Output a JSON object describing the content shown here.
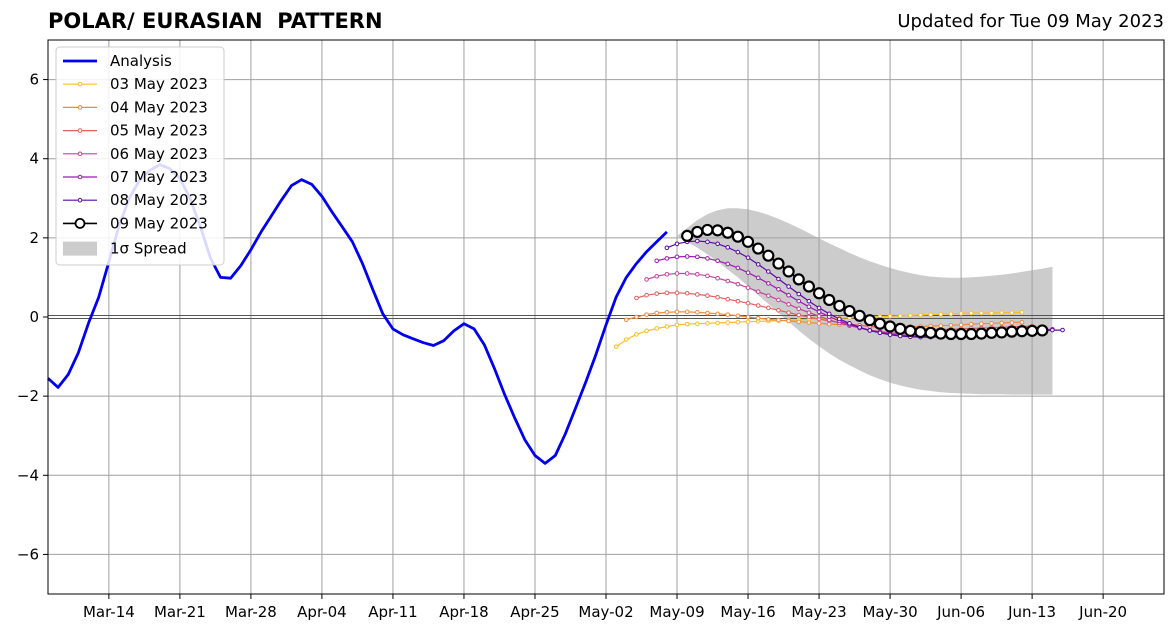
{
  "chart_data": {
    "type": "line",
    "title": "POLAR/ EURASIAN  PATTERN",
    "subtitle": "Updated for Tue 09 May 2023",
    "xlim": [
      "2023-03-08",
      "2023-06-26"
    ],
    "ylim": [
      -7,
      7
    ],
    "grid": true,
    "legend_position": "top-left",
    "x_ticks": [
      {
        "date": "2023-03-14",
        "label": "Mar-14"
      },
      {
        "date": "2023-03-21",
        "label": "Mar-21"
      },
      {
        "date": "2023-03-28",
        "label": "Mar-28"
      },
      {
        "date": "2023-04-04",
        "label": "Apr-04"
      },
      {
        "date": "2023-04-11",
        "label": "Apr-11"
      },
      {
        "date": "2023-04-18",
        "label": "Apr-18"
      },
      {
        "date": "2023-04-25",
        "label": "Apr-25"
      },
      {
        "date": "2023-05-02",
        "label": "May-02"
      },
      {
        "date": "2023-05-09",
        "label": "May-09"
      },
      {
        "date": "2023-05-16",
        "label": "May-16"
      },
      {
        "date": "2023-05-23",
        "label": "May-23"
      },
      {
        "date": "2023-05-30",
        "label": "May-30"
      },
      {
        "date": "2023-06-06",
        "label": "Jun-06"
      },
      {
        "date": "2023-06-13",
        "label": "Jun-13"
      },
      {
        "date": "2023-06-20",
        "label": "Jun-20"
      }
    ],
    "y_ticks": [
      {
        "value": -6,
        "label": "−6"
      },
      {
        "value": -4,
        "label": "−4"
      },
      {
        "value": -2,
        "label": "−2"
      },
      {
        "value": 0,
        "label": "0"
      },
      {
        "value": 2,
        "label": "2"
      },
      {
        "value": 4,
        "label": "4"
      },
      {
        "value": 6,
        "label": "6"
      }
    ],
    "analysis": {
      "name": "Analysis",
      "color": "#0000ee",
      "start_date": "2023-03-08",
      "values": [
        -1.55,
        -1.78,
        -1.45,
        -0.9,
        -0.15,
        0.5,
        1.4,
        2.3,
        3.0,
        3.45,
        3.7,
        3.85,
        3.75,
        3.5,
        3.0,
        2.3,
        1.5,
        1.0,
        0.98,
        1.3,
        1.7,
        2.15,
        2.55,
        2.95,
        3.32,
        3.47,
        3.35,
        3.05,
        2.65,
        2.28,
        1.9,
        1.35,
        0.7,
        0.08,
        -0.3,
        -0.45,
        -0.55,
        -0.65,
        -0.72,
        -0.6,
        -0.35,
        -0.17,
        -0.3,
        -0.7,
        -1.3,
        -1.95,
        -2.55,
        -3.1,
        -3.5,
        -3.7,
        -3.5,
        -2.95,
        -2.3,
        -1.65,
        -0.95,
        -0.2,
        0.5,
        1.0,
        1.35,
        1.65,
        1.9,
        2.15
      ]
    },
    "forecasts": [
      {
        "name": "03 May 2023",
        "color": "#fbbf24",
        "start_date": "2023-05-03",
        "values": [
          -0.75,
          -0.57,
          -0.44,
          -0.35,
          -0.29,
          -0.24,
          -0.2,
          -0.18,
          -0.17,
          -0.16,
          -0.15,
          -0.14,
          -0.13,
          -0.12,
          -0.11,
          -0.1,
          -0.09,
          -0.08,
          -0.07,
          -0.06,
          -0.05,
          -0.04,
          -0.03,
          -0.02,
          -0.01,
          0.0,
          0.01,
          0.02,
          0.03,
          0.04,
          0.05,
          0.06,
          0.07,
          0.08,
          0.09,
          0.1,
          0.1,
          0.1,
          0.11,
          0.11,
          0.12
        ]
      },
      {
        "name": "04 May 2023",
        "color": "#f28a3c",
        "start_date": "2023-05-04",
        "values": [
          -0.07,
          0.0,
          0.06,
          0.1,
          0.12,
          0.13,
          0.13,
          0.12,
          0.1,
          0.08,
          0.06,
          0.03,
          0.0,
          -0.03,
          -0.06,
          -0.08,
          -0.1,
          -0.12,
          -0.14,
          -0.16,
          -0.18,
          -0.19,
          -0.2,
          -0.21,
          -0.22,
          -0.23,
          -0.23,
          -0.24,
          -0.24,
          -0.24,
          -0.23,
          -0.22,
          -0.21,
          -0.2,
          -0.18,
          -0.17,
          -0.16,
          -0.15,
          -0.14,
          -0.13
        ]
      },
      {
        "name": "05 May 2023",
        "color": "#e06060",
        "start_date": "2023-05-05",
        "values": [
          0.48,
          0.55,
          0.59,
          0.61,
          0.61,
          0.6,
          0.57,
          0.54,
          0.5,
          0.45,
          0.4,
          0.35,
          0.29,
          0.23,
          0.17,
          0.11,
          0.05,
          0.0,
          -0.05,
          -0.1,
          -0.14,
          -0.18,
          -0.21,
          -0.24,
          -0.26,
          -0.28,
          -0.29,
          -0.3,
          -0.31,
          -0.31,
          -0.31,
          -0.31,
          -0.3,
          -0.29,
          -0.28,
          -0.27,
          -0.26,
          -0.25,
          -0.24,
          -0.23
        ]
      },
      {
        "name": "06 May 2023",
        "color": "#c2449a",
        "start_date": "2023-05-06",
        "values": [
          0.95,
          1.03,
          1.08,
          1.1,
          1.1,
          1.08,
          1.04,
          0.98,
          0.91,
          0.83,
          0.74,
          0.64,
          0.54,
          0.43,
          0.32,
          0.21,
          0.11,
          0.02,
          -0.07,
          -0.15,
          -0.22,
          -0.28,
          -0.33,
          -0.37,
          -0.4,
          -0.42,
          -0.43,
          -0.44,
          -0.44,
          -0.43,
          -0.42,
          -0.4,
          -0.38,
          -0.36,
          -0.34,
          -0.32,
          -0.3,
          -0.29,
          -0.28,
          -0.27
        ]
      },
      {
        "name": "07 May 2023",
        "color": "#9a1cb0",
        "start_date": "2023-05-07",
        "values": [
          1.42,
          1.48,
          1.52,
          1.53,
          1.52,
          1.48,
          1.42,
          1.34,
          1.24,
          1.12,
          0.99,
          0.85,
          0.7,
          0.55,
          0.4,
          0.26,
          0.13,
          0.01,
          -0.1,
          -0.19,
          -0.27,
          -0.34,
          -0.39,
          -0.43,
          -0.46,
          -0.48,
          -0.49,
          -0.49,
          -0.48,
          -0.47,
          -0.45,
          -0.43,
          -0.41,
          -0.39,
          -0.37,
          -0.35,
          -0.34,
          -0.33,
          -0.32,
          -0.31
        ]
      },
      {
        "name": "08 May 2023",
        "color": "#5a0aa0",
        "start_date": "2023-05-08",
        "values": [
          1.75,
          1.85,
          1.9,
          1.92,
          1.9,
          1.85,
          1.76,
          1.64,
          1.5,
          1.33,
          1.15,
          0.96,
          0.77,
          0.58,
          0.4,
          0.23,
          0.08,
          -0.05,
          -0.16,
          -0.26,
          -0.34,
          -0.4,
          -0.45,
          -0.48,
          -0.5,
          -0.51,
          -0.51,
          -0.5,
          -0.49,
          -0.47,
          -0.45,
          -0.43,
          -0.41,
          -0.39,
          -0.37,
          -0.36,
          -0.35,
          -0.34,
          -0.33,
          -0.33
        ]
      },
      {
        "name": "09 May 2023",
        "color": "#000000",
        "start_date": "2023-05-10",
        "values": [
          2.05,
          2.15,
          2.2,
          2.19,
          2.13,
          2.03,
          1.9,
          1.73,
          1.55,
          1.35,
          1.15,
          0.95,
          0.77,
          0.6,
          0.43,
          0.28,
          0.15,
          0.03,
          -0.08,
          -0.17,
          -0.24,
          -0.3,
          -0.35,
          -0.38,
          -0.4,
          -0.42,
          -0.43,
          -0.43,
          -0.43,
          -0.42,
          -0.4,
          -0.39,
          -0.37,
          -0.36,
          -0.35,
          -0.34
        ]
      }
    ],
    "spread": {
      "name": "1σ Spread",
      "color": "#cccccc",
      "start_date": "2023-05-09",
      "upper": [
        2.05,
        2.25,
        2.45,
        2.6,
        2.7,
        2.75,
        2.75,
        2.72,
        2.66,
        2.58,
        2.48,
        2.37,
        2.25,
        2.12,
        1.99,
        1.86,
        1.74,
        1.62,
        1.51,
        1.41,
        1.32,
        1.24,
        1.17,
        1.11,
        1.06,
        1.02,
        1.0,
        0.99,
        0.99,
        1.0,
        1.02,
        1.04,
        1.07,
        1.1,
        1.14,
        1.18,
        1.22,
        1.27
      ],
      "lower": [
        2.05,
        1.9,
        1.75,
        1.58,
        1.4,
        1.2,
        1.0,
        0.78,
        0.55,
        0.33,
        0.1,
        -0.12,
        -0.34,
        -0.55,
        -0.74,
        -0.92,
        -1.08,
        -1.22,
        -1.35,
        -1.47,
        -1.57,
        -1.66,
        -1.73,
        -1.79,
        -1.84,
        -1.87,
        -1.9,
        -1.92,
        -1.93,
        -1.94,
        -1.95,
        -1.95,
        -1.95,
        -1.96,
        -1.96,
        -1.96,
        -1.96,
        -1.96
      ]
    }
  }
}
